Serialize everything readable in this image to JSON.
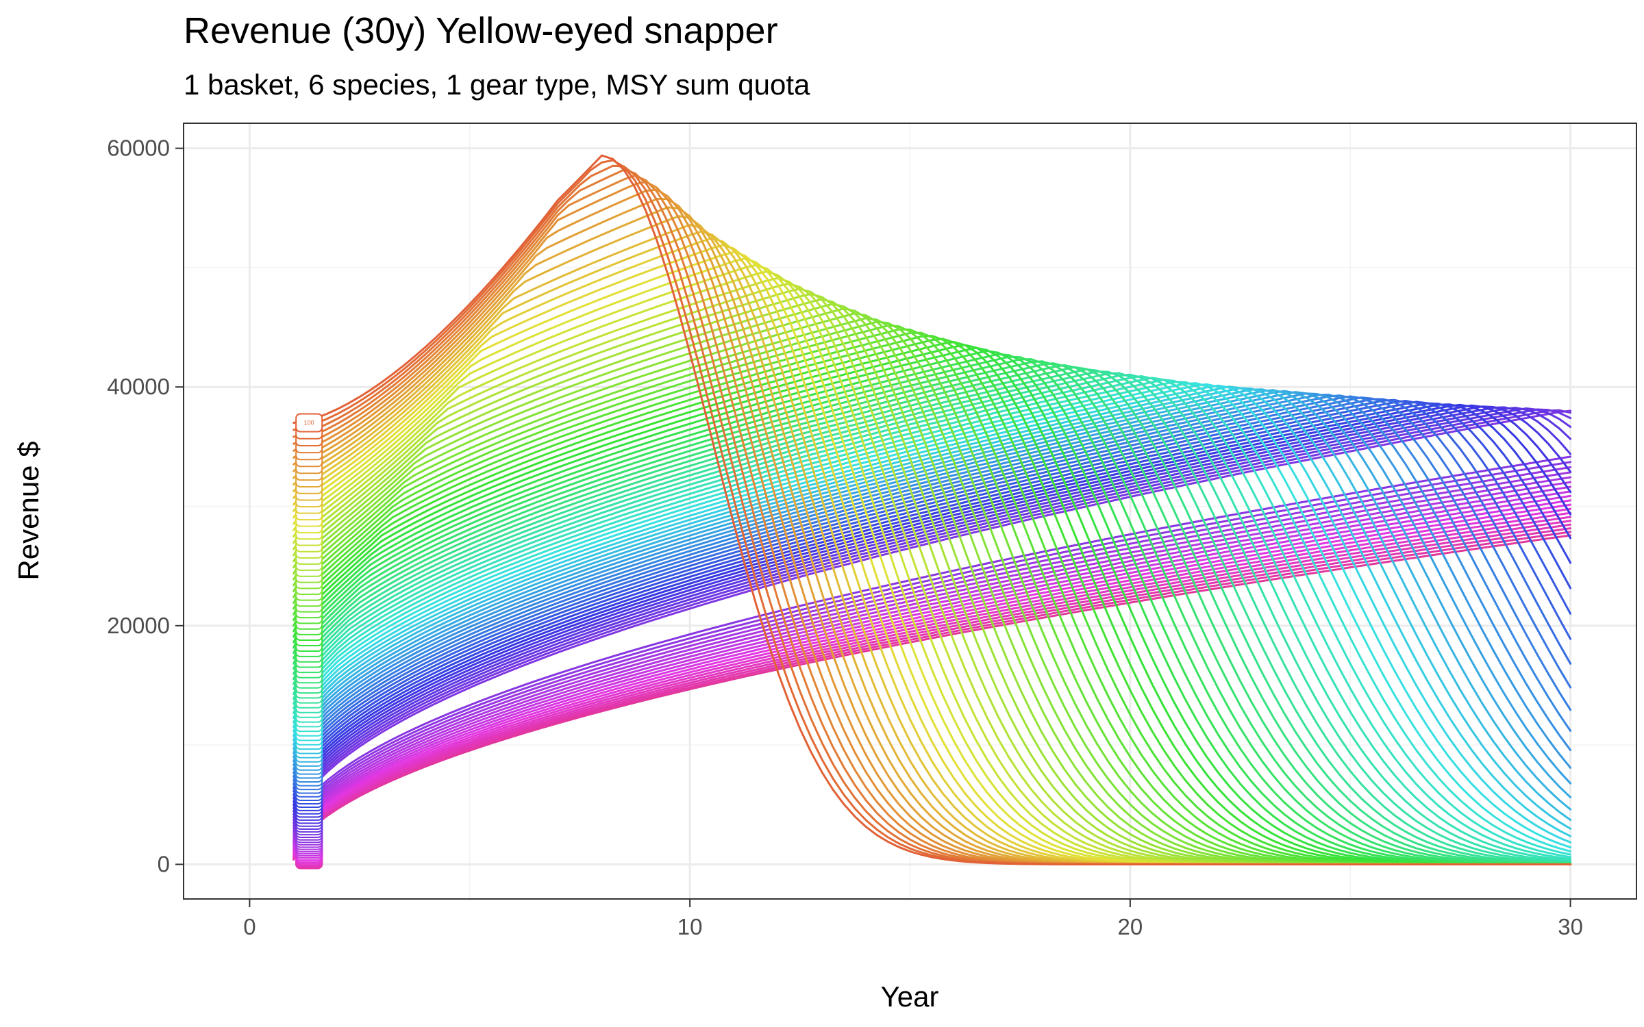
{
  "chart_data": {
    "type": "line",
    "title": "Revenue (30y) Yellow-eyed snapper",
    "subtitle": "1 basket, 6 species, 1 gear type, MSY sum quota",
    "xlabel": "Year",
    "ylabel": "Revenue $",
    "xlim": [
      -1.5,
      31.5
    ],
    "ylim": [
      -2900,
      62100
    ],
    "x_ticks": [
      0,
      10,
      20,
      30
    ],
    "y_ticks": [
      0,
      20000,
      40000,
      60000
    ],
    "x_minor": [
      5,
      15,
      25
    ],
    "y_minor": [
      10000,
      30000,
      50000
    ],
    "grid": true,
    "legend": "none",
    "n_series": 100,
    "visible_series_label": "100",
    "series_palette": "ggplot hue (red → orange → green → cyan → blue → purple → pink)",
    "envelope": {
      "years": [
        1,
        7,
        8,
        9,
        10,
        11,
        12,
        13,
        14,
        15,
        16,
        17,
        18,
        19,
        20,
        21,
        22,
        23,
        24,
        25,
        26,
        27,
        28,
        29,
        30
      ],
      "revenue": [
        37000,
        57300,
        59400,
        57000,
        53600,
        51200,
        49000,
        47300,
        45800,
        44700,
        43700,
        42800,
        42100,
        41500,
        41000,
        40500,
        40100,
        39800,
        39500,
        39200,
        38900,
        38600,
        38400,
        38200,
        38000
      ]
    },
    "series": [
      {
        "name": "1",
        "start": 400
      },
      {
        "name": "100",
        "start": 37000
      }
    ]
  }
}
